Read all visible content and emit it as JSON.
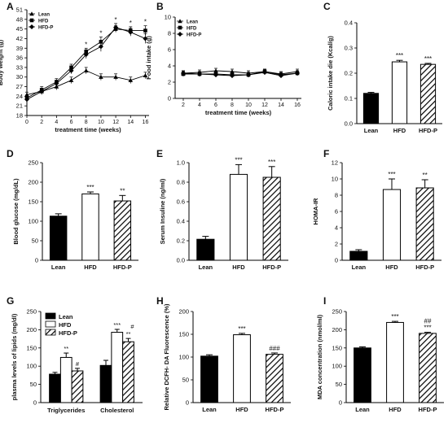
{
  "chart_data": [
    {
      "panel": "A",
      "type": "line",
      "xlabel": "treatment time (weeks)",
      "ylabel": "Body weight (g)",
      "x": [
        0,
        2,
        4,
        6,
        8,
        10,
        12,
        14,
        16
      ],
      "xticks": [
        "0",
        "2",
        "4",
        "6",
        "8",
        "10",
        "12",
        "14",
        "16"
      ],
      "ylim": [
        18,
        51
      ],
      "yticks": [
        18,
        21,
        24,
        27,
        30,
        33,
        36,
        39,
        42,
        45,
        48,
        51
      ],
      "legend": [
        "Lean",
        "HFD",
        "HFD-P"
      ],
      "series": [
        {
          "name": "Lean",
          "values": [
            24.5,
            25.5,
            27,
            29,
            32,
            30,
            30,
            29,
            30.5
          ],
          "err": [
            0.8,
            0.8,
            1,
            1,
            1,
            1,
            1,
            1,
            1
          ]
        },
        {
          "name": "HFD",
          "values": [
            23.5,
            26,
            28.5,
            33,
            38,
            41,
            45,
            44.5,
            44.5
          ],
          "err": [
            0.8,
            1,
            1,
            1,
            1,
            1.5,
            1,
            1.2,
            1.5
          ]
        },
        {
          "name": "HFD-P",
          "values": [
            23,
            25.5,
            28,
            32,
            37,
            39.5,
            45.5,
            44,
            42
          ],
          "err": [
            0.8,
            1,
            1,
            1,
            1.2,
            1.5,
            1.2,
            1.2,
            1.5
          ]
        }
      ],
      "sig": [
        {
          "x": 8,
          "text": "*"
        },
        {
          "x": 10,
          "text": "*"
        },
        {
          "x": 12,
          "text": "*"
        },
        {
          "x": 14,
          "text": "*"
        },
        {
          "x": 16,
          "text": "*"
        }
      ]
    },
    {
      "panel": "B",
      "type": "line",
      "xlabel": "treatment time (weeks)",
      "ylabel": "Food intake (g)",
      "x": [
        2,
        4,
        6,
        8,
        10,
        12,
        14,
        16
      ],
      "xticks": [
        "2",
        "4",
        "6",
        "8",
        "10",
        "12",
        "14",
        "16"
      ],
      "ylim": [
        0,
        10
      ],
      "yticks": [
        0,
        2,
        4,
        6,
        8,
        10
      ],
      "legend": [
        "Lean",
        "HFD",
        "HFD-P"
      ],
      "series": [
        {
          "name": "Lean",
          "values": [
            3.1,
            3.2,
            3.4,
            3.3,
            3.1,
            3.3,
            3.0,
            3.3
          ],
          "err": [
            0.3,
            0.3,
            0.3,
            0.3,
            0.3,
            0.3,
            0.3,
            0.3
          ]
        },
        {
          "name": "HFD",
          "values": [
            3.0,
            3.0,
            3.0,
            2.9,
            2.9,
            3.3,
            2.9,
            3.1
          ],
          "err": [
            0.3,
            0.3,
            0.3,
            0.3,
            0.3,
            0.3,
            0.3,
            0.3
          ]
        },
        {
          "name": "HFD-P",
          "values": [
            3.1,
            3.0,
            2.9,
            2.8,
            2.9,
            3.2,
            2.8,
            3.1
          ],
          "err": [
            0.3,
            0.3,
            0.3,
            0.3,
            0.3,
            0.3,
            0.3,
            0.3
          ]
        }
      ]
    },
    {
      "panel": "C",
      "type": "bar",
      "ylabel": "Caloric intake die (Kcal/g)",
      "categories": [
        "Lean",
        "HFD",
        "HFD-P"
      ],
      "values": [
        0.12,
        0.245,
        0.235
      ],
      "err": [
        0.004,
        0.006,
        0.004
      ],
      "ylim": [
        0,
        0.4
      ],
      "yticks": [
        "0.0",
        "0.1",
        "0.2",
        "0.3",
        "0.4"
      ],
      "sig": [
        "",
        "***",
        "***"
      ]
    },
    {
      "panel": "D",
      "type": "bar",
      "ylabel": "Blood glucose (mg/dL)",
      "categories": [
        "Lean",
        "HFD",
        "HFD-P"
      ],
      "values": [
        113,
        170,
        152
      ],
      "err": [
        6,
        5,
        14
      ],
      "ylim": [
        0,
        250
      ],
      "yticks": [
        "0",
        "50",
        "100",
        "150",
        "200",
        "250"
      ],
      "sig": [
        "",
        "***",
        "**"
      ]
    },
    {
      "panel": "E",
      "type": "bar",
      "ylabel": "Serum Insuline (ng/ml)",
      "categories": [
        "Lean",
        "HFD",
        "HFD-P"
      ],
      "values": [
        0.215,
        0.88,
        0.85
      ],
      "err": [
        0.03,
        0.1,
        0.11
      ],
      "ylim": [
        0,
        1
      ],
      "yticks": [
        "0.0",
        "0.2",
        "0.4",
        "0.6",
        "0.8",
        "1.0"
      ],
      "sig": [
        "",
        "***",
        "***"
      ]
    },
    {
      "panel": "F",
      "type": "bar",
      "ylabel": "HOMA-IR",
      "categories": [
        "Lean",
        "HFD",
        "HFD-P"
      ],
      "values": [
        1.1,
        8.7,
        8.9
      ],
      "err": [
        0.2,
        1.3,
        1.0
      ],
      "ylim": [
        0,
        12
      ],
      "yticks": [
        "0",
        "2",
        "4",
        "6",
        "8",
        "10",
        "12"
      ],
      "sig": [
        "",
        "***",
        "**"
      ]
    },
    {
      "panel": "G",
      "type": "bar",
      "ylabel": "plasma levels of lipids (mg/dl)",
      "categories": [
        "Triglycerides",
        "Cholesterol"
      ],
      "legend": [
        "Lean",
        "HFD",
        "HFD-P"
      ],
      "series": [
        {
          "name": "Lean",
          "values": [
            78,
            102
          ],
          "err": [
            5,
            14
          ]
        },
        {
          "name": "HFD",
          "values": [
            124,
            193
          ],
          "err": [
            12,
            8
          ]
        },
        {
          "name": "HFD-P",
          "values": [
            87,
            167
          ],
          "err": [
            7,
            9
          ]
        }
      ],
      "ylim": [
        0,
        250
      ],
      "yticks": [
        "0",
        "50",
        "100",
        "150",
        "200",
        "250"
      ],
      "sig": [
        [
          "",
          "**",
          "#"
        ],
        [
          "",
          "***",
          "**"
        ]
      ],
      "sig2": [
        [
          "",
          "",
          ""
        ],
        [
          "",
          "",
          "#"
        ]
      ]
    },
    {
      "panel": "H",
      "type": "bar",
      "ylabel": "Relative DCFH- DA Fluorescence (%)",
      "categories": [
        "Lean",
        "HFD",
        "HFD-P"
      ],
      "values": [
        102,
        149,
        106
      ],
      "err": [
        3,
        3,
        3
      ],
      "ylim": [
        0,
        200
      ],
      "yticks": [
        "0",
        "50",
        "100",
        "150",
        "200"
      ],
      "sig": [
        "",
        "***",
        "###"
      ]
    },
    {
      "panel": "I",
      "type": "bar",
      "ylabel": "MDA concentration (nmol/ml)",
      "categories": [
        "Lean",
        "HFD",
        "HFD-P"
      ],
      "values": [
        150,
        220,
        190
      ],
      "err": [
        3,
        3,
        3
      ],
      "ylim": [
        0,
        250
      ],
      "yticks": [
        "0",
        "50",
        "100",
        "150",
        "200",
        "250"
      ],
      "sig": [
        "",
        "***",
        "***"
      ],
      "sig2": [
        "",
        "",
        "##"
      ]
    }
  ],
  "colors": {
    "lean": "#000000",
    "hfd": "#ffffff",
    "hfdp": "hatch"
  }
}
